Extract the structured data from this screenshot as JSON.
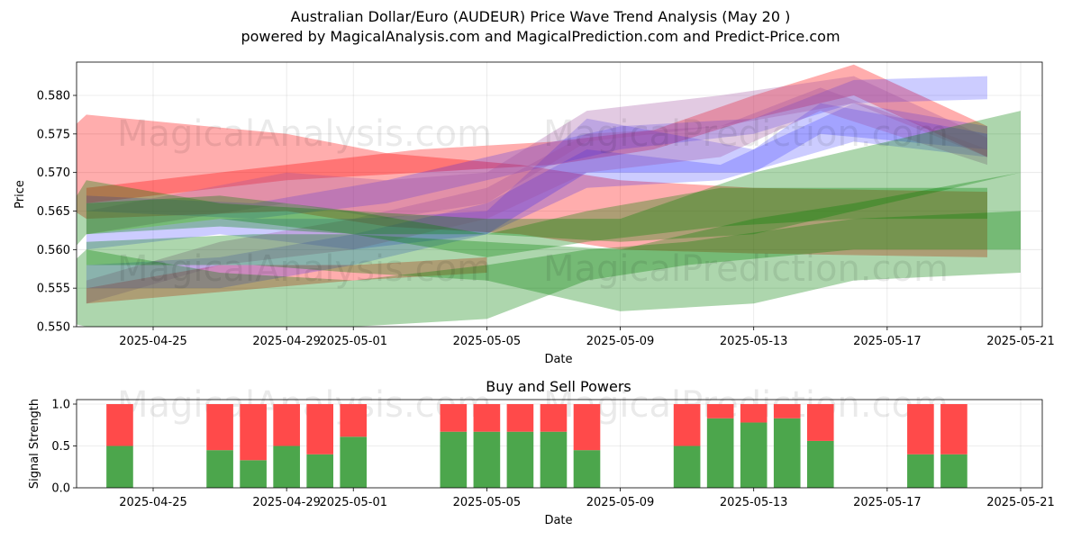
{
  "title": "Australian Dollar/Euro (AUDEUR) Price Wave Trend Analysis (May 20 )",
  "subtitle": "powered by MagicalAnalysis.com and MagicalPrediction.com and Predict-Price.com",
  "watermarks": [
    "MagicalAnalysis.com",
    "MagicalPrediction.com"
  ],
  "colors": {
    "red": "#ff0000",
    "blue": "#0000ff",
    "green": "#008000",
    "purple": "#a0509f",
    "buy": "#4ca64c",
    "sell": "#ff4a4a"
  },
  "chart_data": [
    {
      "type": "area",
      "title": "",
      "xlabel": "Date",
      "ylabel": "Price",
      "ylim": [
        0.55,
        0.5845
      ],
      "xlim": [
        "2025-04-21",
        "2025-05-21"
      ],
      "grid": true,
      "x_ticks": [
        "2025-04-25",
        "2025-04-29",
        "2025-05-01",
        "2025-05-05",
        "2025-05-09",
        "2025-05-13",
        "2025-05-17",
        "2025-05-21"
      ],
      "y_ticks": [
        "0.550",
        "0.555",
        "0.560",
        "0.565",
        "0.570",
        "0.575",
        "0.580"
      ],
      "bands": [
        {
          "color": "red",
          "x": [
            "2025-04-21",
            "2025-04-23",
            "2025-04-29",
            "2025-05-02",
            "2025-05-06",
            "2025-05-09",
            "2025-05-13",
            "2025-05-20"
          ],
          "upper": [
            0.5695,
            0.5775,
            0.575,
            0.5725,
            0.571,
            0.569,
            0.568,
            0.5675
          ],
          "lower": [
            0.5695,
            0.564,
            0.565,
            0.563,
            0.562,
            0.56,
            0.5595,
            0.559
          ]
        },
        {
          "color": "red",
          "x": [
            "2025-04-23",
            "2025-04-25",
            "2025-04-29",
            "2025-05-03",
            "2025-05-07",
            "2025-05-10",
            "2025-05-13",
            "2025-05-16",
            "2025-05-20"
          ],
          "upper": [
            0.568,
            0.569,
            0.571,
            0.573,
            0.574,
            0.5755,
            0.58,
            0.584,
            0.576
          ],
          "lower": [
            0.566,
            0.567,
            0.569,
            0.57,
            0.571,
            0.573,
            0.577,
            0.58,
            0.572
          ]
        },
        {
          "color": "red",
          "x": [
            "2025-04-23",
            "2025-04-27",
            "2025-05-01",
            "2025-05-05"
          ],
          "upper": [
            0.555,
            0.558,
            0.558,
            0.559
          ],
          "lower": [
            0.553,
            0.5545,
            0.556,
            0.557
          ]
        },
        {
          "color": "blue",
          "x": [
            "2025-04-23",
            "2025-04-27",
            "2025-05-01",
            "2025-05-05",
            "2025-05-08",
            "2025-05-13",
            "2025-05-15",
            "2025-05-20"
          ],
          "upper": [
            0.562,
            0.564,
            0.564,
            0.565,
            0.577,
            0.573,
            0.579,
            0.575
          ],
          "lower": [
            0.56,
            0.562,
            0.56,
            0.562,
            0.57,
            0.57,
            0.575,
            0.573
          ]
        },
        {
          "color": "blue",
          "x": [
            "2025-04-23",
            "2025-04-27",
            "2025-05-01",
            "2025-05-05",
            "2025-05-08",
            "2025-05-12",
            "2025-05-16",
            "2025-05-20"
          ],
          "upper": [
            0.558,
            0.559,
            0.562,
            0.566,
            0.573,
            0.571,
            0.579,
            0.576
          ],
          "lower": [
            0.555,
            0.555,
            0.558,
            0.562,
            0.568,
            0.569,
            0.574,
            0.572
          ]
        },
        {
          "color": "blue",
          "x": [
            "2025-04-23",
            "2025-04-28",
            "2025-05-02",
            "2025-05-05",
            "2025-05-09",
            "2025-05-13",
            "2025-05-16",
            "2025-05-20"
          ],
          "upper": [
            0.567,
            0.566,
            0.569,
            0.572,
            0.576,
            0.577,
            0.582,
            0.5825
          ],
          "lower": [
            0.565,
            0.564,
            0.566,
            0.569,
            0.573,
            0.575,
            0.579,
            0.5795
          ]
        },
        {
          "color": "purple",
          "x": [
            "2025-04-23",
            "2025-04-29",
            "2025-05-02",
            "2025-05-05",
            "2025-05-08",
            "2025-05-12",
            "2025-05-16",
            "2025-05-20"
          ],
          "upper": [
            0.565,
            0.57,
            0.569,
            0.57,
            0.578,
            0.58,
            0.5825,
            0.5745
          ],
          "lower": [
            0.562,
            0.566,
            0.564,
            0.566,
            0.574,
            0.576,
            0.579,
            0.572
          ]
        },
        {
          "color": "purple",
          "x": [
            "2025-04-23",
            "2025-04-27",
            "2025-05-01",
            "2025-05-05",
            "2025-05-08",
            "2025-05-12",
            "2025-05-15",
            "2025-05-20"
          ],
          "upper": [
            0.556,
            0.561,
            0.564,
            0.568,
            0.575,
            0.576,
            0.581,
            0.573
          ],
          "lower": [
            0.553,
            0.558,
            0.56,
            0.564,
            0.57,
            0.572,
            0.578,
            0.571
          ]
        },
        {
          "color": "green",
          "x": [
            "2025-04-21",
            "2025-04-23",
            "2025-04-27",
            "2025-05-01",
            "2025-05-05",
            "2025-05-09",
            "2025-05-13",
            "2025-05-16",
            "2025-05-21"
          ],
          "upper": [
            0.555,
            0.569,
            0.566,
            0.565,
            0.564,
            0.564,
            0.57,
            0.573,
            0.578
          ],
          "lower": [
            0.552,
            0.562,
            0.564,
            0.562,
            0.562,
            0.561,
            0.562,
            0.565,
            0.57
          ]
        },
        {
          "color": "green",
          "x": [
            "2025-04-21",
            "2025-04-23",
            "2025-04-27",
            "2025-05-01",
            "2025-05-05",
            "2025-05-08",
            "2025-05-11",
            "2025-05-16",
            "2025-05-21"
          ],
          "upper": [
            0.552,
            0.56,
            0.557,
            0.556,
            0.558,
            0.56,
            0.561,
            0.564,
            0.565
          ],
          "lower": [
            0.552,
            0.55,
            0.55,
            0.55,
            0.551,
            0.556,
            0.558,
            0.56,
            0.56
          ]
        },
        {
          "color": "green",
          "x": [
            "2025-04-23",
            "2025-04-28",
            "2025-05-01",
            "2025-05-05",
            "2025-05-09",
            "2025-05-13",
            "2025-05-16",
            "2025-05-21"
          ],
          "upper": [
            0.561,
            0.562,
            0.562,
            0.561,
            0.56,
            0.564,
            0.566,
            0.57
          ],
          "lower": [
            0.558,
            0.558,
            0.557,
            0.556,
            0.552,
            0.553,
            0.556,
            0.557
          ]
        },
        {
          "color": "green",
          "x": [
            "2025-04-23",
            "2025-04-27",
            "2025-05-01",
            "2025-05-05",
            "2025-05-08",
            "2025-05-12",
            "2025-05-16",
            "2025-05-20"
          ],
          "upper": [
            0.566,
            0.567,
            0.565,
            0.562,
            0.565,
            0.568,
            0.568,
            0.568
          ],
          "lower": [
            0.562,
            0.563,
            0.562,
            0.559,
            0.561,
            0.563,
            0.564,
            0.564
          ]
        }
      ]
    },
    {
      "type": "bar",
      "title": "Buy and Sell Powers",
      "xlabel": "Date",
      "ylabel": "Signal Strength",
      "ylim": [
        0,
        1.05
      ],
      "xlim": [
        "2025-04-21",
        "2025-05-21"
      ],
      "grid": true,
      "x_ticks": [
        "2025-04-25",
        "2025-04-29",
        "2025-05-01",
        "2025-05-05",
        "2025-05-09",
        "2025-05-13",
        "2025-05-17",
        "2025-05-21"
      ],
      "y_ticks": [
        "0.0",
        "0.5",
        "1.0"
      ],
      "dates": [
        "2025-04-24",
        "2025-04-27",
        "2025-04-28",
        "2025-04-29",
        "2025-04-30",
        "2025-05-01",
        "2025-05-04",
        "2025-05-05",
        "2025-05-06",
        "2025-05-07",
        "2025-05-08",
        "2025-05-11",
        "2025-05-12",
        "2025-05-13",
        "2025-05-14",
        "2025-05-15",
        "2025-05-18",
        "2025-05-19"
      ],
      "series": [
        {
          "name": "Buy",
          "values": [
            0.5,
            0.45,
            0.33,
            0.5,
            0.4,
            0.61,
            0.67,
            0.67,
            0.67,
            0.67,
            0.45,
            0.5,
            0.83,
            0.78,
            0.83,
            0.56,
            0.4,
            0.4
          ]
        },
        {
          "name": "Sell",
          "values": [
            0.5,
            0.55,
            0.67,
            0.5,
            0.6,
            0.39,
            0.33,
            0.33,
            0.33,
            0.33,
            0.55,
            0.5,
            0.17,
            0.22,
            0.17,
            0.44,
            0.6,
            0.6
          ]
        }
      ]
    }
  ]
}
